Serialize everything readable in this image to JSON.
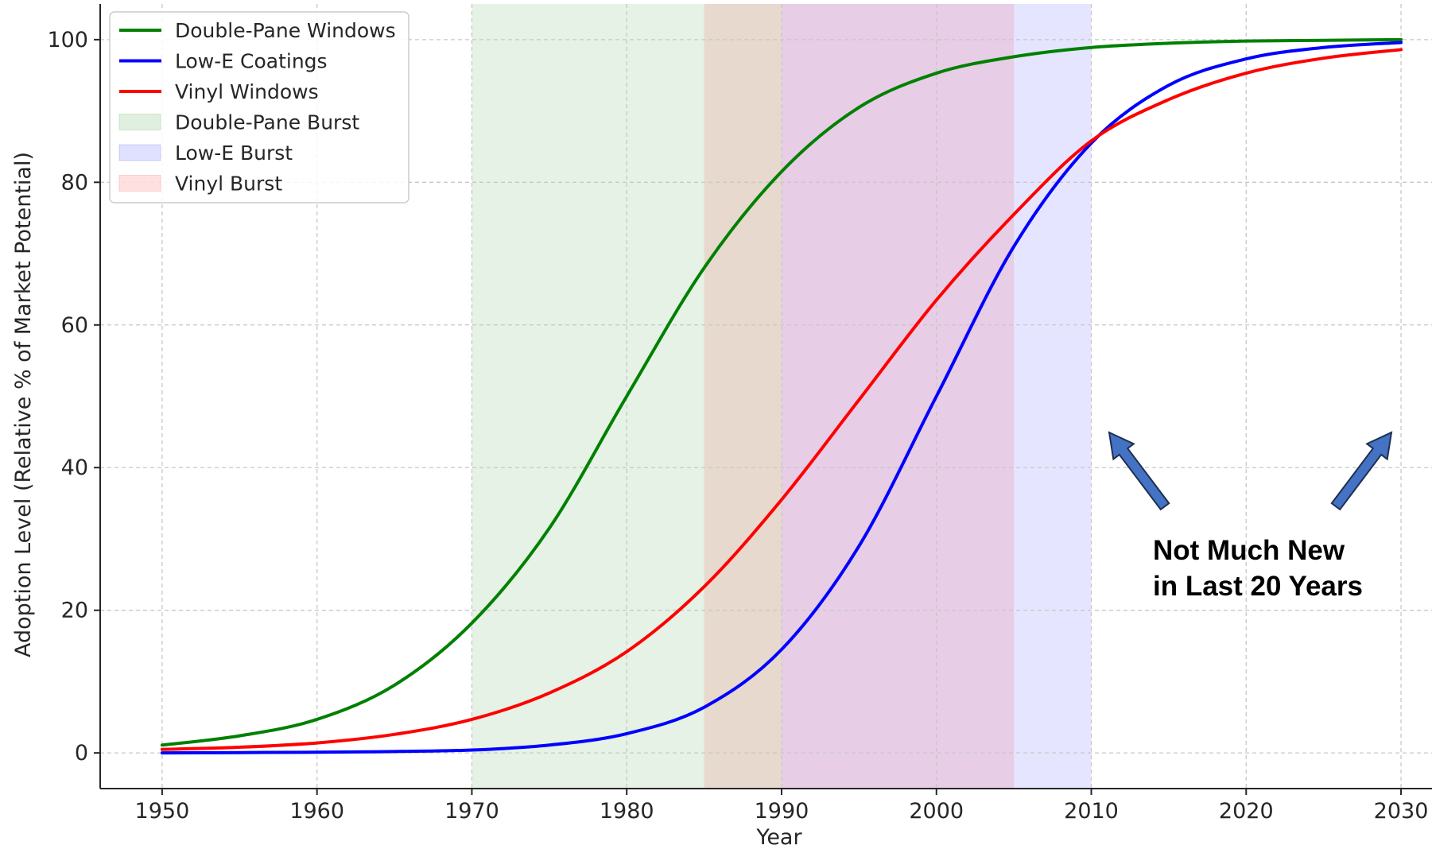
{
  "chart_data": {
    "type": "line",
    "xlabel": "Year",
    "ylabel": "Adoption Level (Relative % of Market Potential)",
    "xlim": [
      1946,
      2032
    ],
    "ylim": [
      -5,
      105
    ],
    "x_ticks": [
      1950,
      1960,
      1970,
      1980,
      1990,
      2000,
      2010,
      2020,
      2030
    ],
    "y_ticks": [
      0,
      20,
      40,
      60,
      80,
      100
    ],
    "grid": true,
    "legend_placement": "top-left",
    "x": [
      1950,
      1955,
      1960,
      1965,
      1970,
      1975,
      1980,
      1985,
      1990,
      1995,
      2000,
      2005,
      2010,
      2015,
      2020,
      2025,
      2030
    ],
    "series": [
      {
        "name": "Double-Pane Windows",
        "color": "#008000",
        "values": [
          1.1,
          2.4,
          4.7,
          9.5,
          18.2,
          31.5,
          50.0,
          68.0,
          81.5,
          90.5,
          95.3,
          97.6,
          98.9,
          99.5,
          99.8,
          99.9,
          100.0
        ]
      },
      {
        "name": "Low-E Coatings",
        "color": "#0000ff",
        "values": [
          0.0,
          0.05,
          0.1,
          0.2,
          0.4,
          1.1,
          2.7,
          6.4,
          14.5,
          29.0,
          50.0,
          71.0,
          85.5,
          93.6,
          97.3,
          98.9,
          99.6
        ]
      },
      {
        "name": "Vinyl Windows",
        "color": "#ff0000",
        "values": [
          0.5,
          0.8,
          1.4,
          2.6,
          4.7,
          8.4,
          14.2,
          23.3,
          35.5,
          49.5,
          63.5,
          75.5,
          85.8,
          91.6,
          95.3,
          97.4,
          98.6
        ]
      }
    ],
    "bursts": [
      {
        "name": "Double-Pane Burst",
        "start": 1970,
        "end": 1990,
        "color": "#008000",
        "opacity": 0.1
      },
      {
        "name": "Low-E Burst",
        "start": 1990,
        "end": 2010,
        "color": "#0000ff",
        "opacity": 0.1
      },
      {
        "name": "Vinyl Burst",
        "start": 1985,
        "end": 2005,
        "color": "#ff0000",
        "opacity": 0.1
      }
    ],
    "annotation": {
      "line1": "Not Much New",
      "line2": "in Last 20 Years",
      "arrow_color": "#4472c4",
      "arrow_edge_color": "#1f2f50"
    }
  }
}
